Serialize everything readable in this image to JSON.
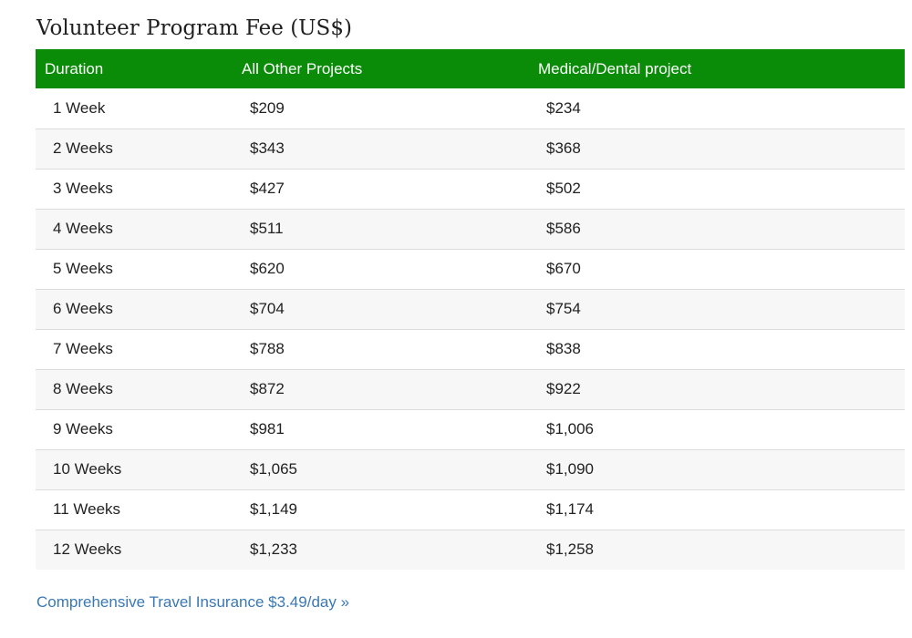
{
  "title": "Volunteer Program Fee (US$)",
  "table": {
    "headers": [
      "Duration",
      "All Other Projects",
      "Medical/Dental project"
    ],
    "rows": [
      [
        "1 Week",
        "$209",
        "$234"
      ],
      [
        "2 Weeks",
        "$343",
        "$368"
      ],
      [
        "3 Weeks",
        "$427",
        "$502"
      ],
      [
        "4 Weeks",
        "$511",
        "$586"
      ],
      [
        "5 Weeks",
        "$620",
        "$670"
      ],
      [
        "6 Weeks",
        "$704",
        "$754"
      ],
      [
        "7 Weeks",
        "$788",
        "$838"
      ],
      [
        "8 Weeks",
        "$872",
        "$922"
      ],
      [
        "9 Weeks",
        "$981",
        "$1,006"
      ],
      [
        "10 Weeks",
        "$1,065",
        "$1,090"
      ],
      [
        "11 Weeks",
        "$1,149",
        "$1,174"
      ],
      [
        "12 Weeks",
        "$1,233",
        "$1,258"
      ]
    ]
  },
  "insurance_link": "Comprehensive Travel Insurance $3.49/day »",
  "colors": {
    "header_background": "#0a8c08",
    "header_text": "#ffffff",
    "link": "#3a78b5",
    "row_stripe": "#f7f7f7"
  }
}
